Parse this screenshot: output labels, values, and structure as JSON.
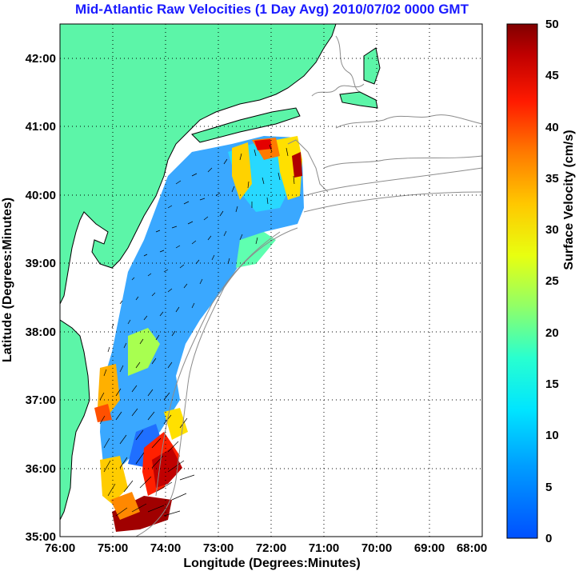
{
  "title": "Mid-Atlantic Raw Velocities (1 Day Avg) 2010/07/02 0000 GMT",
  "x_axis": {
    "label": "Longitude (Degrees:Minutes)",
    "ticks": [
      "76:00",
      "75:00",
      "74:00",
      "73:00",
      "72:00",
      "71:00",
      "70:00",
      "69:00",
      "68:00"
    ],
    "range": [
      -76,
      -68
    ]
  },
  "y_axis": {
    "label": "Latitude (Degrees:Minutes)",
    "ticks": [
      "35:00",
      "36:00",
      "37:00",
      "38:00",
      "39:00",
      "40:00",
      "41:00",
      "42:00"
    ],
    "range": [
      35,
      42.5
    ]
  },
  "colorbar": {
    "label": "Surface Velocity (cm/s)",
    "ticks": [
      "0",
      "5",
      "10",
      "15",
      "20",
      "25",
      "30",
      "35",
      "40",
      "45",
      "50"
    ],
    "range": [
      0,
      50
    ],
    "colormap": "jet"
  },
  "colors": {
    "land": "#5cf5a8",
    "coast_outline": "#000000",
    "bathymetry": "#8c8c8c",
    "title": "#1a1aff",
    "vectors": "#000000"
  },
  "grid": true
}
